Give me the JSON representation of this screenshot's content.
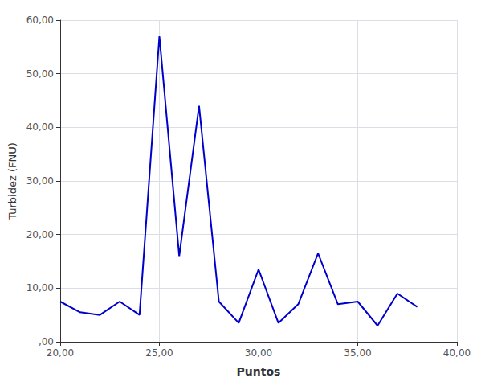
{
  "chart_data": {
    "type": "line",
    "x": [
      20,
      21,
      22,
      23,
      24,
      25,
      26,
      27,
      28,
      29,
      30,
      31,
      32,
      33,
      34,
      35,
      36,
      37,
      38
    ],
    "values": [
      7.5,
      5.5,
      5.0,
      7.5,
      5.0,
      57.0,
      16.0,
      44.0,
      7.5,
      3.5,
      13.5,
      3.5,
      7.0,
      16.5,
      7.0,
      7.5,
      3.0,
      9.0,
      6.5
    ],
    "color": "#0000CC",
    "xlabel": "Puntos",
    "ylabel": "Turbidez (FNU)",
    "xlim": [
      20,
      40
    ],
    "ylim": [
      0,
      60
    ],
    "xticks": [
      {
        "value": 20,
        "label": "20,00"
      },
      {
        "value": 25,
        "label": "25,00"
      },
      {
        "value": 30,
        "label": "30,00"
      },
      {
        "value": 35,
        "label": "35,00"
      },
      {
        "value": 40,
        "label": "40,00"
      }
    ],
    "yticks": [
      {
        "value": 0,
        "label": ",00"
      },
      {
        "value": 10,
        "label": "10,00"
      },
      {
        "value": 20,
        "label": "20,00"
      },
      {
        "value": 30,
        "label": "30,00"
      },
      {
        "value": 40,
        "label": "40,00"
      },
      {
        "value": 50,
        "label": "50,00"
      },
      {
        "value": 60,
        "label": "60,00"
      }
    ],
    "grid": true
  }
}
